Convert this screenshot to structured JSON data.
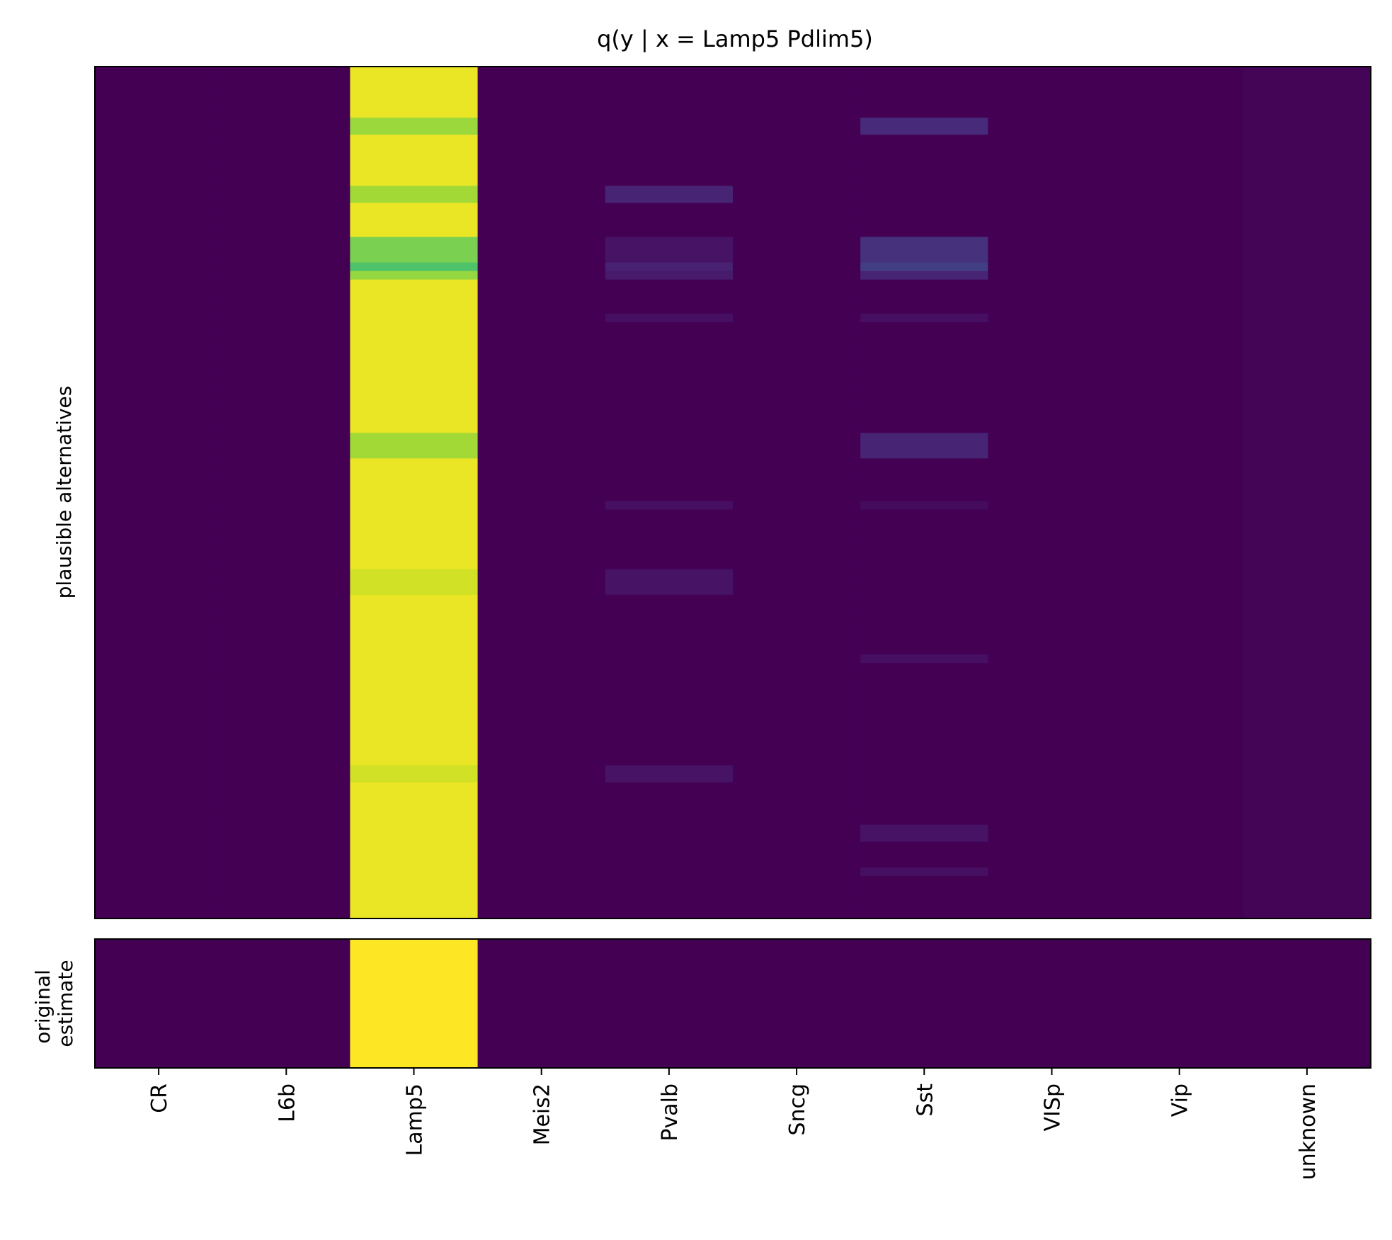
{
  "chart_data": [
    {
      "type": "heatmap",
      "panel": "plausible alternatives",
      "title": "q(y | x = Lamp5 Pdlim5)",
      "ylabel": "plausible alternatives",
      "categories": [
        "CR",
        "L6b",
        "Lamp5",
        "Meis2",
        "Pvalb",
        "Sncg",
        "Sst",
        "VISp",
        "Vip",
        "unknown"
      ],
      "colormap": "viridis",
      "value_range": [
        0,
        1
      ],
      "rows": 100,
      "base_values": [
        0.0,
        0.0,
        0.97,
        0.0,
        0.0,
        0.0,
        0.0,
        0.0,
        0.0,
        0.01
      ],
      "highlight_rows": [
        {
          "rows": [
            6,
            7
          ],
          "values": {
            "Lamp5": 0.85,
            "Sst": 0.12
          }
        },
        {
          "rows": [
            14,
            15
          ],
          "values": {
            "Lamp5": 0.86,
            "Pvalb": 0.1
          }
        },
        {
          "rows": [
            20,
            21,
            22
          ],
          "values": {
            "Lamp5": 0.8,
            "Pvalb": 0.05,
            "Sst": 0.14
          }
        },
        {
          "rows": [
            23
          ],
          "values": {
            "Lamp5": 0.72,
            "Pvalb": 0.09,
            "Sst": 0.18
          }
        },
        {
          "rows": [
            24
          ],
          "values": {
            "Lamp5": 0.84,
            "Pvalb": 0.07,
            "Sst": 0.1
          }
        },
        {
          "rows": [
            29
          ],
          "values": {
            "Pvalb": 0.04,
            "Sst": 0.04
          }
        },
        {
          "rows": [
            43,
            44,
            45
          ],
          "values": {
            "Lamp5": 0.86,
            "Sst": 0.1
          }
        },
        {
          "rows": [
            51
          ],
          "values": {
            "Pvalb": 0.04,
            "Sst": 0.03
          }
        },
        {
          "rows": [
            59,
            60,
            61
          ],
          "values": {
            "Lamp5": 0.93,
            "Pvalb": 0.05
          }
        },
        {
          "rows": [
            69
          ],
          "values": {
            "Sst": 0.04
          }
        },
        {
          "rows": [
            82,
            83
          ],
          "values": {
            "Lamp5": 0.93,
            "Pvalb": 0.05
          }
        },
        {
          "rows": [
            89,
            90
          ],
          "values": {
            "Sst": 0.05
          }
        },
        {
          "rows": [
            94
          ],
          "values": {
            "Sst": 0.04
          }
        }
      ]
    },
    {
      "type": "heatmap",
      "panel": "original estimate",
      "ylabel": "original\nestimate",
      "categories": [
        "CR",
        "L6b",
        "Lamp5",
        "Meis2",
        "Pvalb",
        "Sncg",
        "Sst",
        "VISp",
        "Vip",
        "unknown"
      ],
      "colormap": "viridis",
      "values": [
        0.0,
        0.0,
        1.0,
        0.0,
        0.0,
        0.0,
        0.0,
        0.0,
        0.0,
        0.0
      ]
    }
  ]
}
